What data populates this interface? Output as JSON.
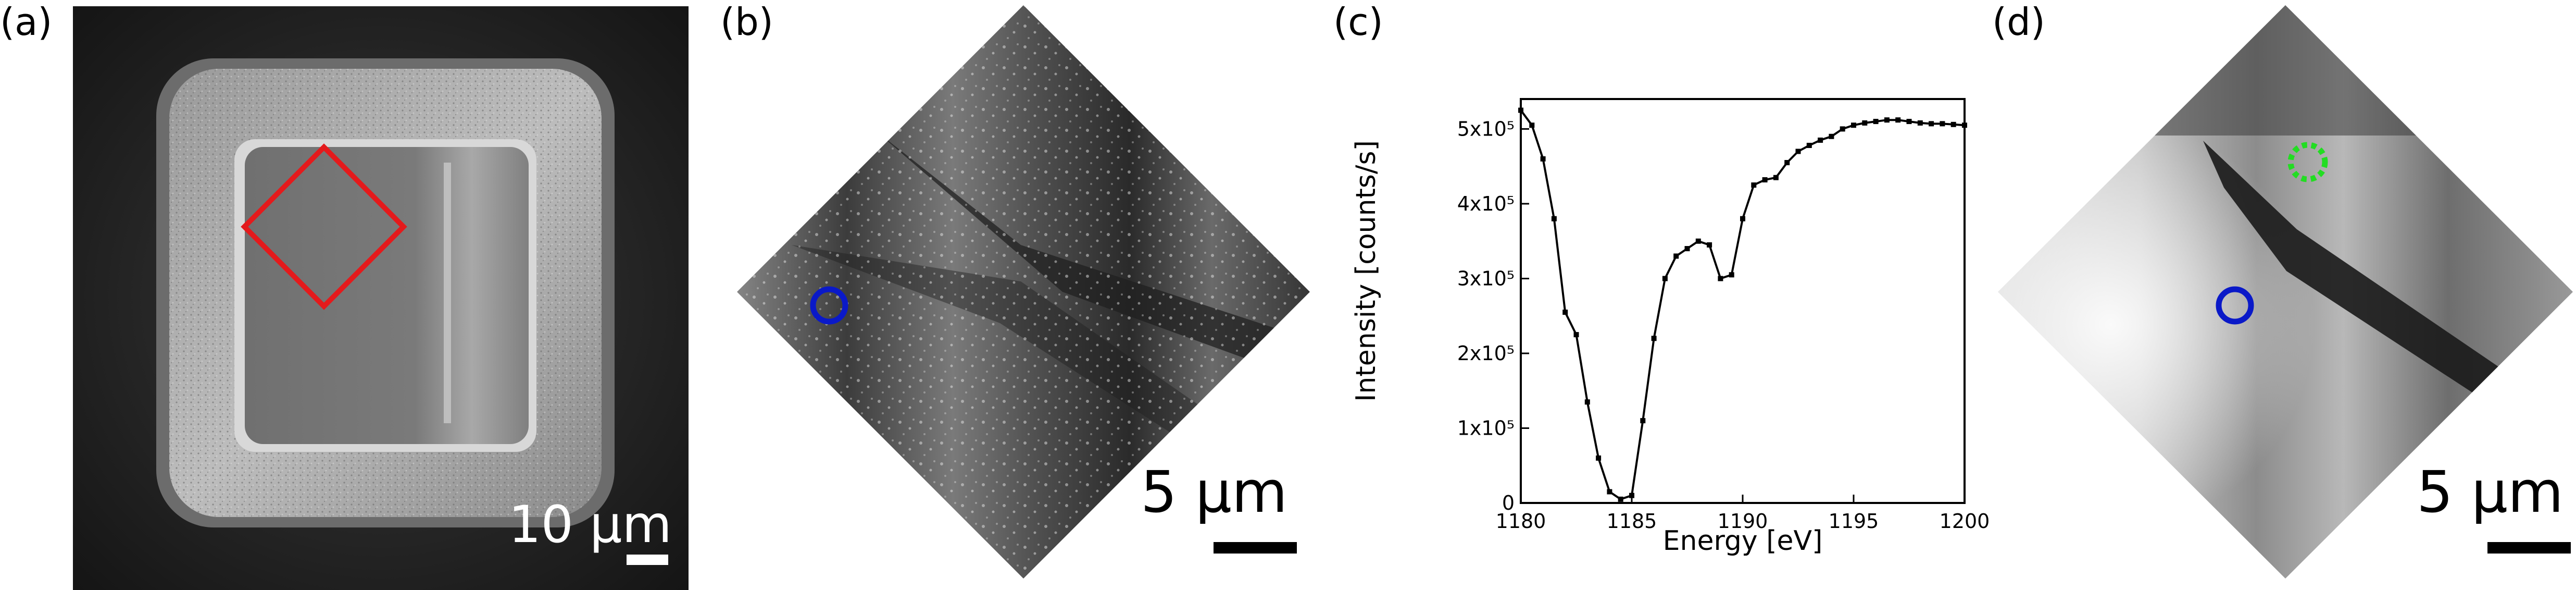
{
  "panels": {
    "a": {
      "label": "(a)",
      "scale_bar": "10 µm"
    },
    "b": {
      "label": "(b)",
      "scale_bar": "5 µm"
    },
    "c": {
      "label": "(c)"
    },
    "d": {
      "label": "(d)",
      "scale_bar": "5 µm"
    }
  },
  "colors": {
    "roi_square": "#e41a1c",
    "marker_blue": "#0a19c8",
    "marker_green": "#22dd22",
    "curve": "#000000"
  },
  "chart_data": {
    "type": "line",
    "title": "",
    "xlabel": "Energy [eV]",
    "ylabel": "Intensity [counts/s]",
    "xlim": [
      1180,
      1200
    ],
    "ylim": [
      0,
      540000
    ],
    "x_ticks": [
      1180,
      1185,
      1190,
      1195,
      1200
    ],
    "x_tick_labels": [
      "1180",
      "1185",
      "1190",
      "1195",
      "1200"
    ],
    "y_ticks": [
      0,
      100000,
      200000,
      300000,
      400000,
      500000
    ],
    "y_tick_labels": [
      "0",
      "1x10⁵",
      "2x10⁵",
      "3x10⁵",
      "4x10⁵",
      "5x10⁵"
    ],
    "grid": false,
    "series": [
      {
        "x": [
          1180,
          1180.5,
          1181,
          1181.5,
          1182,
          1182.5,
          1183,
          1183.5,
          1184,
          1184.5,
          1185,
          1185.5,
          1186,
          1186.5,
          1187,
          1187.5,
          1188,
          1188.5,
          1189,
          1189.5,
          1190,
          1190.5,
          1191,
          1191.5,
          1192,
          1192.5,
          1193,
          1193.5,
          1194,
          1194.5,
          1195,
          1195.5,
          1196,
          1196.5,
          1197,
          1197.5,
          1198,
          1198.5,
          1199,
          1199.5,
          1200
        ],
        "y": [
          525000,
          505000,
          460000,
          380000,
          255000,
          225000,
          135000,
          60000,
          15000,
          5000,
          10000,
          110000,
          220000,
          300000,
          330000,
          340000,
          350000,
          345000,
          300000,
          305000,
          380000,
          425000,
          432000,
          435000,
          455000,
          470000,
          478000,
          485000,
          490000,
          500000,
          505000,
          508000,
          510000,
          512000,
          512000,
          510000,
          508000,
          507000,
          507000,
          506000,
          505000
        ]
      }
    ]
  }
}
